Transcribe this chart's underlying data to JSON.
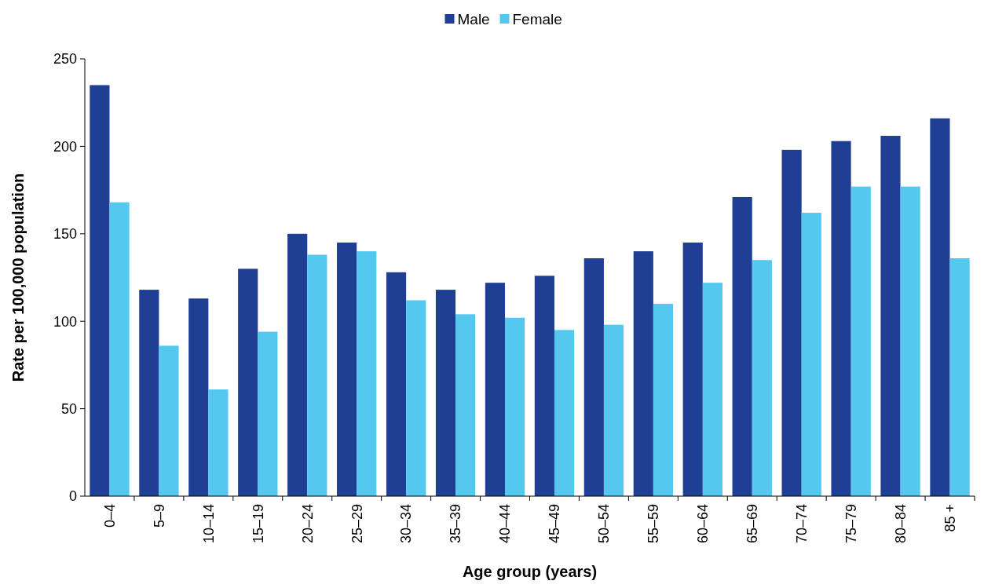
{
  "chart_data": {
    "type": "bar",
    "xlabel": "Age group (years)",
    "ylabel": "Rate per 100,000 population",
    "categories": [
      "0–4",
      "5–9",
      "10–14",
      "15–19",
      "20–24",
      "25–29",
      "30–34",
      "35–39",
      "40–44",
      "45–49",
      "50–54",
      "55–59",
      "60–64",
      "65–69",
      "70–74",
      "75–79",
      "80–84",
      "85 +"
    ],
    "series": [
      {
        "name": "Male",
        "color": "#1f3f94",
        "values": [
          235,
          118,
          113,
          130,
          150,
          145,
          128,
          118,
          122,
          126,
          136,
          140,
          145,
          171,
          198,
          203,
          206,
          216
        ]
      },
      {
        "name": "Female",
        "color": "#55c8f0",
        "values": [
          168,
          86,
          61,
          94,
          138,
          140,
          112,
          104,
          102,
          95,
          98,
          110,
          122,
          135,
          162,
          177,
          177,
          136
        ]
      }
    ],
    "ylim": [
      0,
      250
    ],
    "yticks": [
      0,
      50,
      100,
      150,
      200,
      250
    ],
    "grid": false,
    "legend": "top"
  }
}
